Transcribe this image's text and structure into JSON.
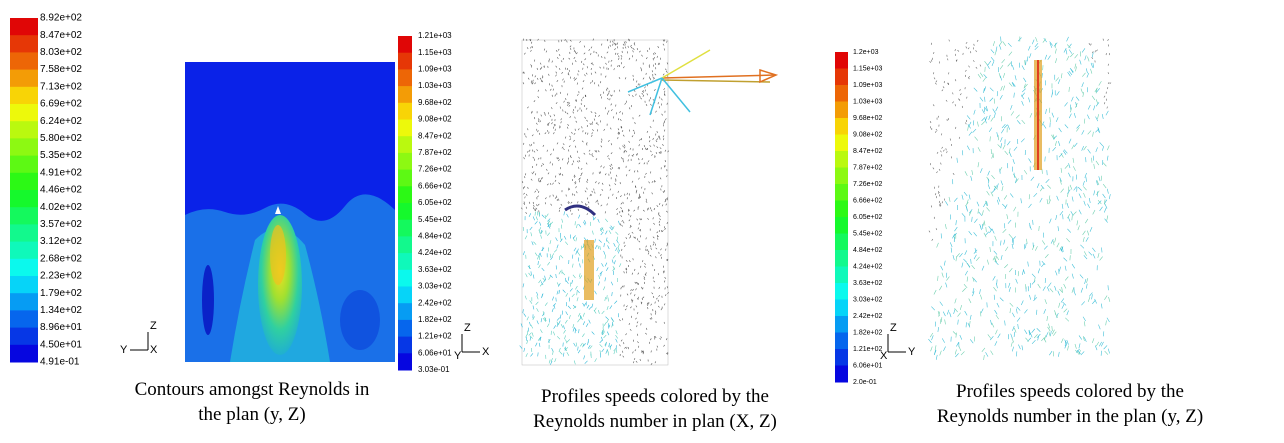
{
  "panels": [
    {
      "colorbar_labels": [
        "8.92e+02",
        "8.47e+02",
        "8.03e+02",
        "7.58e+02",
        "7.13e+02",
        "6.69e+02",
        "6.24e+02",
        "5.80e+02",
        "5.35e+02",
        "4.91e+02",
        "4.46e+02",
        "4.02e+02",
        "3.57e+02",
        "3.12e+02",
        "2.68e+02",
        "2.23e+02",
        "1.79e+02",
        "1.34e+02",
        "8.96e+01",
        "4.50e+01",
        "4.91e-01"
      ],
      "axis_labels": {
        "vertical": "Z",
        "horizontal": "Y",
        "origin": "X"
      },
      "caption": [
        "Contours amongst Reynolds in",
        "the plan (y, Z)"
      ]
    },
    {
      "colorbar_labels": [
        "1.21e+03",
        "1.15e+03",
        "1.09e+03",
        "1.03e+03",
        "9.68e+02",
        "9.08e+02",
        "8.47e+02",
        "7.87e+02",
        "7.26e+02",
        "6.66e+02",
        "6.05e+02",
        "5.45e+02",
        "4.84e+02",
        "4.24e+02",
        "3.63e+02",
        "3.03e+02",
        "2.42e+02",
        "1.82e+02",
        "1.21e+02",
        "6.06e+01",
        "3.03e-01"
      ],
      "axis_labels": {
        "vertical": "Z",
        "horizontal": "X",
        "origin": "Y"
      },
      "caption": [
        "Profiles speeds colored by the",
        "Reynolds number in plan (X, Z)"
      ]
    },
    {
      "colorbar_labels": [
        "1.2e+03",
        "1.15e+03",
        "1.09e+03",
        "1.03e+03",
        "9.68e+02",
        "9.08e+02",
        "8.47e+02",
        "7.87e+02",
        "7.26e+02",
        "6.66e+02",
        "6.05e+02",
        "5.45e+02",
        "4.84e+02",
        "4.24e+02",
        "3.63e+02",
        "3.03e+02",
        "2.42e+02",
        "1.82e+02",
        "1.21e+02",
        "6.06e+01",
        "2.0e-01"
      ],
      "axis_labels": {
        "vertical": "Z",
        "horizontal": "Y",
        "origin": "X"
      },
      "caption": [
        "Profiles speeds colored by the",
        "Reynolds number in the plan (y, Z)"
      ]
    }
  ]
}
